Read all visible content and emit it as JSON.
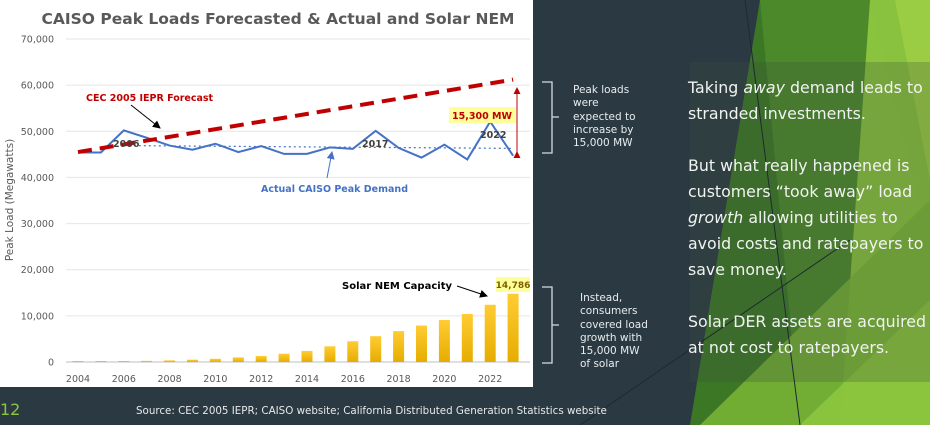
{
  "slide": {
    "number": "12",
    "source": "Source: CEC 2005 IEPR; CAISO website; California Distributed Generation Statistics website",
    "bracket_top_text": [
      "Peak loads",
      "were",
      "expected to",
      "increase by",
      "15,000 MW"
    ],
    "bracket_bottom_text": [
      "Instead,",
      "consumers",
      "covered load",
      "growth with",
      "15,000 MW",
      "of solar"
    ],
    "right_paragraphs": [
      {
        "parts": [
          {
            "text": "Taking ",
            "italic": false
          },
          {
            "text": "away",
            "italic": true
          },
          {
            "text": " demand leads to stranded investments.",
            "italic": false
          }
        ]
      },
      {
        "parts": [
          {
            "text": "But what really happened is customers “took away” load ",
            "italic": false
          },
          {
            "text": "growth",
            "italic": true
          },
          {
            "text": " allowing utilities to avoid costs and ratepayers to save money.",
            "italic": false
          }
        ]
      },
      {
        "parts": [
          {
            "text": "Solar DER assets are acquired at not cost to ratepayers.",
            "italic": false
          }
        ]
      }
    ],
    "colors": {
      "background": "#2b3a42",
      "accent_green": "#8dc63f",
      "forecast_red": "#c00000",
      "actual_blue": "#4472c4",
      "solar_yellow": "#ffc000",
      "highlight_yellow": "#ffff99"
    }
  },
  "chart_data": {
    "type": "line+bar",
    "title": "CAISO Peak Loads Forecasted & Actual and Solar NEM",
    "xlabel": "",
    "ylabel": "Peak Load (Megawatts)",
    "ylim": [
      0,
      70000
    ],
    "yticks": [
      0,
      10000,
      20000,
      30000,
      40000,
      50000,
      60000,
      70000
    ],
    "ytick_labels": [
      "0",
      "10,000",
      "20,000",
      "30,000",
      "40,000",
      "50,000",
      "60,000",
      "70,000"
    ],
    "xticks": [
      2004,
      2006,
      2008,
      2010,
      2012,
      2014,
      2016,
      2018,
      2020,
      2022
    ],
    "xtick_labels": [
      "2004",
      "2006",
      "2008",
      "2010",
      "2012",
      "2014",
      "2016",
      "2018",
      "2020",
      "2022"
    ],
    "grid": true,
    "x": [
      2004,
      2005,
      2006,
      2007,
      2008,
      2009,
      2010,
      2011,
      2012,
      2013,
      2014,
      2015,
      2016,
      2017,
      2018,
      2019,
      2020,
      2021,
      2022,
      2023
    ],
    "series": [
      {
        "name": "CEC 2005 IEPR Forecast",
        "kind": "line-dashed",
        "color": "#c00000",
        "values": [
          45500,
          46300,
          47100,
          48000,
          48800,
          49600,
          50400,
          51200,
          52000,
          52800,
          53600,
          54500,
          55300,
          56100,
          56900,
          57700,
          58600,
          59400,
          60300,
          61200
        ]
      },
      {
        "name": "Actual CAISO Peak Demand",
        "kind": "line",
        "color": "#4472c4",
        "values": [
          45400,
          45400,
          50200,
          48600,
          46900,
          46000,
          47300,
          45500,
          46800,
          45100,
          45100,
          46500,
          46200,
          50100,
          46400,
          44300,
          47100,
          43900,
          52100,
          44700
        ]
      },
      {
        "name": "Solar NEM Capacity",
        "kind": "bar",
        "color": "#ffc000",
        "values": [
          70,
          100,
          150,
          250,
          350,
          500,
          700,
          1000,
          1300,
          1800,
          2400,
          3400,
          4500,
          5600,
          6700,
          7900,
          9100,
          10400,
          12400,
          14786
        ]
      }
    ],
    "reference_line": {
      "label": "2006 baseline",
      "value": 46900,
      "from": 2006,
      "to": 2023
    },
    "annotations": [
      {
        "text": "CEC 2005 IEPR Forecast",
        "color": "#c00000"
      },
      {
        "text": "Actual CAISO Peak Demand",
        "color": "#4472c4"
      },
      {
        "text": "Solar NEM Capacity",
        "color": "#000000"
      },
      {
        "text": "2006",
        "color": "#404040"
      },
      {
        "text": "2017",
        "color": "#404040"
      },
      {
        "text": "2022",
        "color": "#404040"
      },
      {
        "text": "15,300 MW",
        "color": "#c00000",
        "highlight": "#ffff99"
      },
      {
        "text": "14,786",
        "color": "#7f6000",
        "highlight": "#ffff99"
      }
    ]
  }
}
